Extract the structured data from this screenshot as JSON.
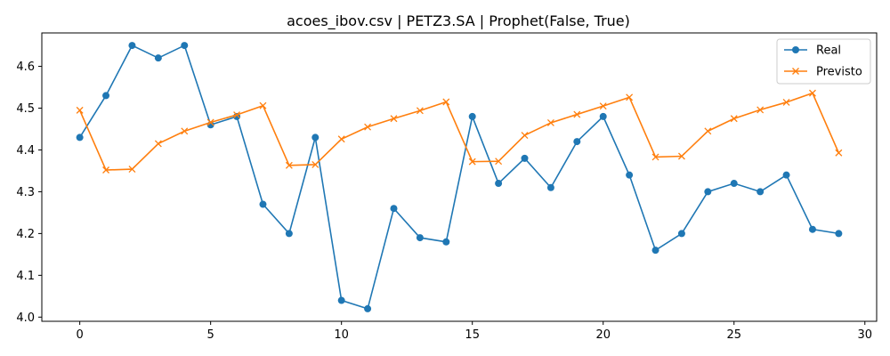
{
  "chart_data": {
    "type": "line",
    "title": "acoes_ibov.csv | PETZ3.SA | Prophet(False, True)",
    "xlabel": "",
    "ylabel": "",
    "xlim": [
      -1.45,
      30.45
    ],
    "ylim": [
      3.99,
      4.68
    ],
    "xticks": [
      0,
      5,
      10,
      15,
      20,
      25,
      30
    ],
    "yticks": [
      4.0,
      4.1,
      4.2,
      4.3,
      4.4,
      4.5,
      4.6
    ],
    "grid": false,
    "legend_position": "top-right",
    "x": [
      0,
      1,
      2,
      3,
      4,
      5,
      6,
      7,
      8,
      9,
      10,
      11,
      12,
      13,
      14,
      15,
      16,
      17,
      18,
      19,
      20,
      21,
      22,
      23,
      24,
      25,
      26,
      27,
      28,
      29
    ],
    "series": [
      {
        "name": "Real",
        "color": "#1f77b4",
        "marker": "circle",
        "values": [
          4.43,
          4.53,
          4.65,
          4.62,
          4.65,
          4.46,
          4.48,
          4.27,
          4.2,
          4.43,
          4.04,
          4.02,
          4.26,
          4.19,
          4.18,
          4.48,
          4.32,
          4.38,
          4.31,
          4.42,
          4.48,
          4.34,
          4.16,
          4.2,
          4.3,
          4.32,
          4.3,
          4.34,
          4.21,
          4.2
        ]
      },
      {
        "name": "Previsto",
        "color": "#ff7f0e",
        "marker": "x",
        "values": [
          4.495,
          4.352,
          4.354,
          4.415,
          4.445,
          4.466,
          4.484,
          4.506,
          4.363,
          4.365,
          4.426,
          4.455,
          4.475,
          4.494,
          4.515,
          4.372,
          4.373,
          4.435,
          4.465,
          4.485,
          4.505,
          4.526,
          4.383,
          4.385,
          4.445,
          4.475,
          4.496,
          4.514,
          4.536,
          4.393
        ]
      }
    ]
  }
}
